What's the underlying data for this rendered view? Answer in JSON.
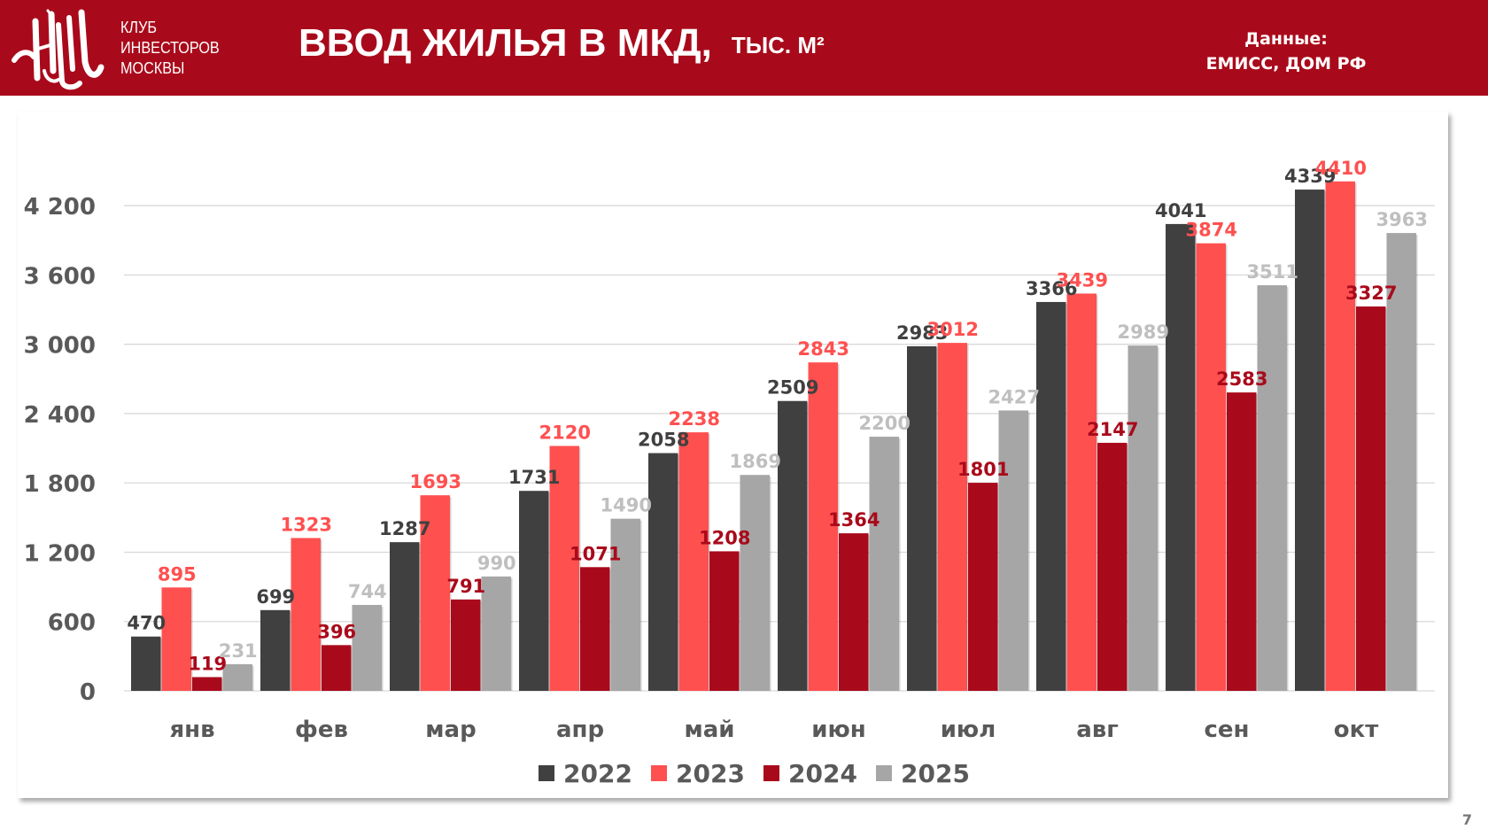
{
  "header": {
    "club_lines": [
      "КЛУБ",
      "ИНВЕСТОРОВ",
      "МОСКВЫ"
    ],
    "title": "ВВОД ЖИЛЬЯ В МКД,",
    "title_unit": "ТЫС. М²",
    "source_label": "Данные:",
    "source_value": "ЕМИСС, ДОМ РФ"
  },
  "page_number": "7",
  "colors": {
    "header_bg": "#a90a1b",
    "s2022": "#404040",
    "s2023": "#ff5050",
    "s2024": "#a90a1b",
    "s2025": "#a6a6a6",
    "label2025": "#bfbfbf",
    "axis_text": "#595959"
  },
  "chart_data": {
    "type": "bar",
    "title": "ВВОД ЖИЛЬЯ В МКД, тыс. м²",
    "xlabel": "",
    "ylabel": "",
    "categories": [
      "янв",
      "фев",
      "мар",
      "апр",
      "май",
      "июн",
      "июл",
      "авг",
      "сен",
      "окт"
    ],
    "series": [
      {
        "name": "2022",
        "color": "#404040",
        "label_color": "#404040",
        "values": [
          470,
          699,
          1287,
          1731,
          2058,
          2509,
          2983,
          3366,
          4041,
          4339
        ]
      },
      {
        "name": "2023",
        "color": "#ff5050",
        "label_color": "#ff5050",
        "values": [
          895,
          1323,
          1693,
          2120,
          2238,
          2843,
          3012,
          3439,
          3874,
          4410
        ]
      },
      {
        "name": "2024",
        "color": "#a90a1b",
        "label_color": "#a90a1b",
        "values": [
          119,
          396,
          791,
          1071,
          1208,
          1364,
          1801,
          2147,
          2583,
          3327
        ]
      },
      {
        "name": "2025",
        "color": "#a6a6a6",
        "label_color": "#bfbfbf",
        "values": [
          231,
          744,
          990,
          1490,
          1869,
          2200,
          2427,
          2989,
          3511,
          3963
        ]
      }
    ],
    "yticks": [
      0,
      600,
      1200,
      1800,
      2400,
      3000,
      3600,
      4200
    ],
    "ytick_labels": [
      "0",
      "600",
      "1 200",
      "1 800",
      "2 400",
      "3 000",
      "3 600",
      "4 200"
    ],
    "ylim": [
      0,
      4600
    ],
    "grid": true,
    "legend_position": "bottom"
  }
}
